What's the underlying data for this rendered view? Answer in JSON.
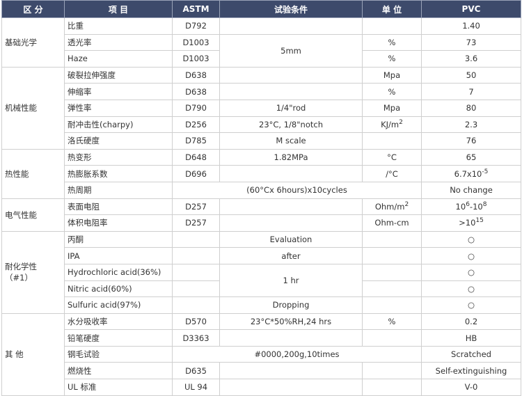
{
  "header": [
    "区 分",
    "项 目",
    "ASTM",
    "试验条件",
    "单 位",
    "PVC"
  ],
  "groups": [
    [
      "基础光学"
    ],
    [
      "机械性能"
    ],
    [
      "热性能"
    ],
    [
      "电气性能"
    ],
    [
      "耐化学性",
      "（#1）"
    ],
    [
      "其 他"
    ]
  ],
  "rows": [
    [
      "比重",
      "D792",
      null,
      null,
      "1.40"
    ],
    [
      "透光率",
      "D1003",
      "5mm",
      "%",
      "73"
    ],
    [
      "Haze",
      "D1003",
      null,
      "%",
      "3.6"
    ],
    [
      "破裂拉伸强度",
      "D638",
      null,
      "Mpa",
      "50"
    ],
    [
      "伸缩率",
      "D638",
      null,
      "%",
      "7"
    ],
    [
      "弹性率",
      "D790",
      "1/4\"rod",
      "Mpa",
      "80"
    ],
    [
      "耐冲击性(charpy)",
      "D256",
      "23°C, 1/8\"notch",
      [
        "KJ/m",
        "2"
      ],
      "2.3"
    ],
    [
      "洛氏硬度",
      "D785",
      "M scale",
      null,
      "76"
    ],
    [
      "热变形",
      "D648",
      "1.82MPa",
      "°C",
      "65"
    ],
    [
      "热膨胀系数",
      "D696",
      null,
      "/°C",
      [
        "6.7x10",
        "-5"
      ]
    ],
    [
      "热周期",
      null,
      "(60°Cx 6hours)x10cycles",
      null,
      "No change"
    ],
    [
      "表面电阻",
      "D257",
      null,
      [
        "Ohm/m",
        "2"
      ],
      [
        "10",
        "6",
        "-10",
        "8"
      ]
    ],
    [
      "体积电阻率",
      "D257",
      null,
      "Ohm-cm",
      [
        ">10",
        "15"
      ]
    ],
    [
      "丙酮",
      null,
      "Evaluation",
      null,
      "○"
    ],
    [
      "IPA",
      null,
      "after",
      null,
      "○"
    ],
    [
      "Hydrochloric acid(36%)",
      null,
      "1 hr",
      null,
      "○"
    ],
    [
      "Nitric acid(60%)",
      null,
      null,
      null,
      "○"
    ],
    [
      "Sulfuric acid(97%)",
      null,
      "Dropping",
      null,
      "○"
    ],
    [
      "水分吸收率",
      "D570",
      "23°C*50%RH,24 hrs",
      "%",
      "0.2"
    ],
    [
      "铅笔硬度",
      "D3363",
      null,
      null,
      "HB"
    ],
    [
      "钢毛试验",
      null,
      "#0000,200g,10times",
      null,
      "Scratched"
    ],
    [
      "燃烧性",
      "D635",
      null,
      null,
      "Self-extinguishing"
    ],
    [
      "UL 标准",
      "UL 94",
      null,
      null,
      "V-0"
    ]
  ]
}
